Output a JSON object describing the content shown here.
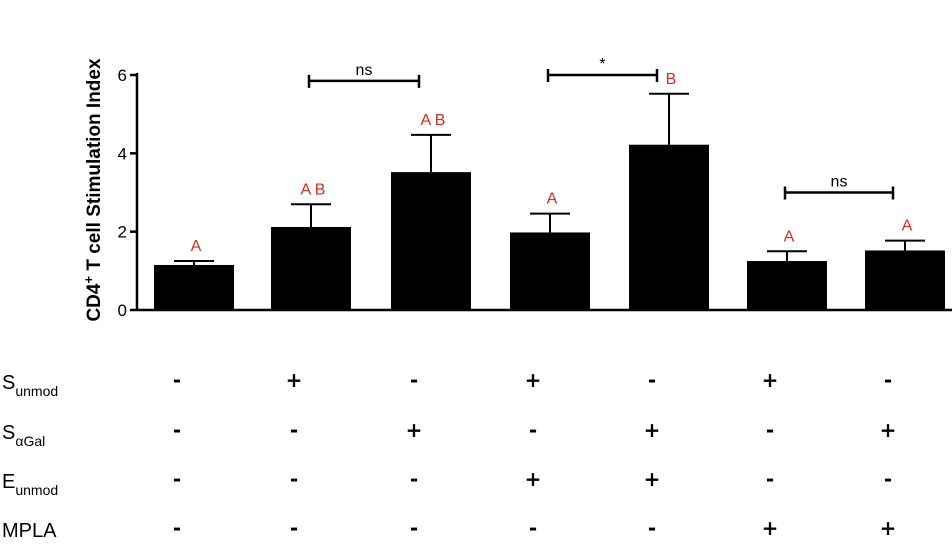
{
  "chart_data": {
    "type": "bar",
    "ylabel_main": "CD4",
    "ylabel_sup": "+",
    "ylabel_rest": " T cell Stimulation Index",
    "ylim": [
      0,
      6
    ],
    "yticks": [
      0,
      2,
      4,
      6
    ],
    "values": [
      1.15,
      2.12,
      3.52,
      1.98,
      4.22,
      1.25,
      1.52
    ],
    "errors": [
      0.1,
      0.58,
      0.95,
      0.48,
      1.3,
      0.25,
      0.25
    ],
    "significance_labels": [
      "A",
      "A B",
      "A B",
      "A",
      "B",
      "A",
      "A"
    ],
    "comparisons": [
      {
        "from": 1,
        "to": 2,
        "label": "ns",
        "y": 5.85
      },
      {
        "from": 3,
        "to": 4,
        "label": "*",
        "y": 6.0
      },
      {
        "from": 5,
        "to": 6,
        "label": "ns",
        "y": 3.0
      }
    ],
    "conditions": [
      {
        "label": "S",
        "sub": "unmod",
        "marks": [
          "-",
          "+",
          "-",
          "+",
          "-",
          "+",
          "-"
        ]
      },
      {
        "label": "S",
        "sub": "αGal",
        "marks": [
          "-",
          "-",
          "+",
          "-",
          "+",
          "-",
          "+"
        ]
      },
      {
        "label": "E",
        "sub": "unmod",
        "marks": [
          "-",
          "-",
          "-",
          "+",
          "+",
          "-",
          "-"
        ]
      },
      {
        "label": "MPLA",
        "sub": "",
        "marks": [
          "-",
          "-",
          "-",
          "-",
          "-",
          "+",
          "+"
        ]
      }
    ],
    "colors": {
      "bar": "#000000",
      "significance": "#d62b1e"
    }
  }
}
